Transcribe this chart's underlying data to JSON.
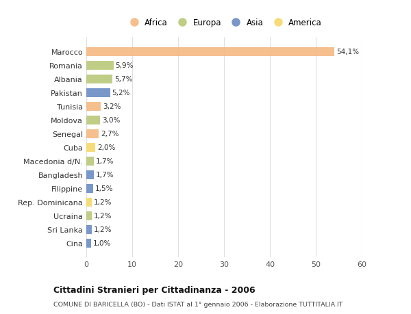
{
  "countries": [
    "Marocco",
    "Romania",
    "Albania",
    "Pakistan",
    "Tunisia",
    "Moldova",
    "Senegal",
    "Cuba",
    "Macedonia d/N.",
    "Bangladesh",
    "Filippine",
    "Rep. Dominicana",
    "Ucraina",
    "Sri Lanka",
    "Cina"
  ],
  "values": [
    54.1,
    5.9,
    5.7,
    5.2,
    3.2,
    3.0,
    2.7,
    2.0,
    1.7,
    1.7,
    1.5,
    1.2,
    1.2,
    1.2,
    1.0
  ],
  "labels": [
    "54,1%",
    "5,9%",
    "5,7%",
    "5,2%",
    "3,2%",
    "3,0%",
    "2,7%",
    "2,0%",
    "1,7%",
    "1,7%",
    "1,5%",
    "1,2%",
    "1,2%",
    "1,2%",
    "1,0%"
  ],
  "continents": [
    "Africa",
    "Europa",
    "Europa",
    "Asia",
    "Africa",
    "Europa",
    "Africa",
    "America",
    "Europa",
    "Asia",
    "Asia",
    "America",
    "Europa",
    "Asia",
    "Asia"
  ],
  "continent_colors": {
    "Africa": "#F5B882",
    "Europa": "#B8C87A",
    "Asia": "#6B8CC4",
    "America": "#F5D96B"
  },
  "legend_order": [
    "Africa",
    "Europa",
    "Asia",
    "America"
  ],
  "xlim": [
    0,
    60
  ],
  "xticks": [
    0,
    10,
    20,
    30,
    40,
    50,
    60
  ],
  "title": "Cittadini Stranieri per Cittadinanza - 2006",
  "subtitle": "COMUNE DI BARICELLA (BO) - Dati ISTAT al 1° gennaio 2006 - Elaborazione TUTTITALIA.IT",
  "background_color": "#ffffff",
  "grid_color": "#e0e0e0"
}
